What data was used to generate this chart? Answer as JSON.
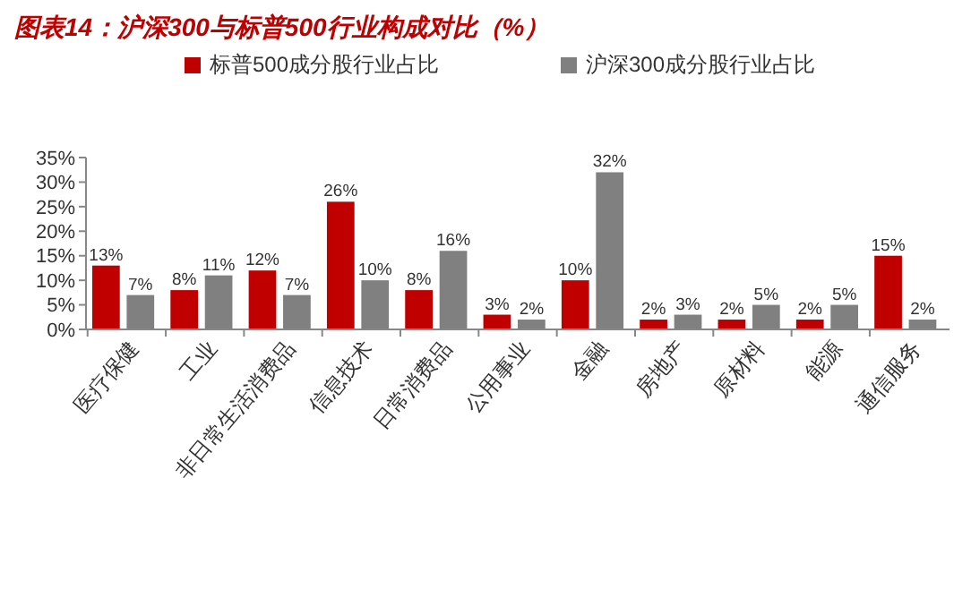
{
  "chart_data": {
    "type": "bar",
    "title": "图表14：沪深300与标普500行业构成对比（%）",
    "categories": [
      "医疗保健",
      "工业",
      "非日常生活消费品",
      "信息技术",
      "日常消费品",
      "公用事业",
      "金融",
      "房地产",
      "原材料",
      "能源",
      "通信服务"
    ],
    "series": [
      {
        "name": "标普500成分股行业占比",
        "color": "#c00000",
        "values": [
          13,
          8,
          12,
          26,
          8,
          3,
          10,
          2,
          2,
          2,
          15
        ],
        "value_labels": [
          "13%",
          "8%",
          "12%",
          "26%",
          "8%",
          "3%",
          "10%",
          "2%",
          "2%",
          "2%",
          "15%"
        ]
      },
      {
        "name": "沪深300成分股行业占比",
        "color": "#808080",
        "values": [
          7,
          11,
          7,
          10,
          16,
          2,
          32,
          3,
          5,
          5,
          2
        ],
        "value_labels": [
          "7%",
          "11%",
          "7%",
          "10%",
          "16%",
          "2%",
          "32%",
          "3%",
          "5%",
          "5%",
          "2%"
        ]
      }
    ],
    "ylim": [
      0,
      35
    ],
    "yticks": [
      {
        "value": 0,
        "label": "0%"
      },
      {
        "value": 5,
        "label": "5%"
      },
      {
        "value": 10,
        "label": "10%"
      },
      {
        "value": 15,
        "label": "15%"
      },
      {
        "value": 20,
        "label": "20%"
      },
      {
        "value": 25,
        "label": "25%"
      },
      {
        "value": 30,
        "label": "30%"
      },
      {
        "value": 35,
        "label": "35%"
      }
    ],
    "grid": false,
    "legend": "top"
  }
}
